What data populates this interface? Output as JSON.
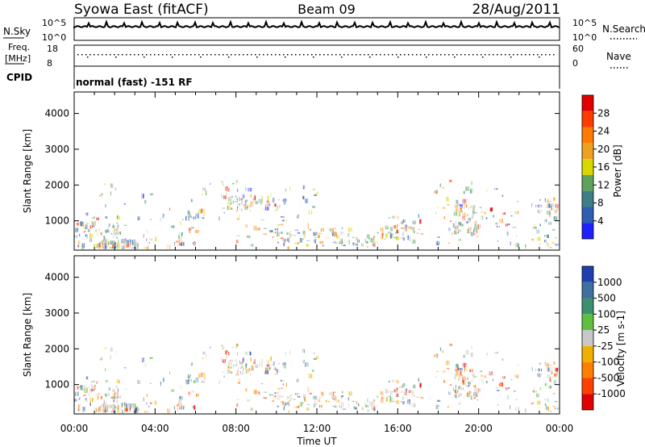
{
  "header": {
    "title": "Syowa East (fitACF)",
    "beam": "Beam 09",
    "date": "28/Aug/2011"
  },
  "noise_panel": {
    "left_label": "N.Sky",
    "right_label": "N.Search",
    "ticks_left": [
      "10^5",
      "10^0"
    ],
    "ticks_right": [
      "10^5",
      "10^0"
    ]
  },
  "freq_panel": {
    "left_label_1": "Freq.",
    "left_label_2": "[MHz]",
    "right_label": "Nave",
    "ticks_left": [
      "18",
      "8"
    ],
    "ticks_right": [
      "60",
      "0"
    ]
  },
  "cpid": {
    "label": "CPID",
    "value": "normal (fast) -151 RF"
  },
  "chart_data": [
    {
      "type": "heatmap",
      "name": "Power",
      "xlabel": "",
      "ylabel": "Slant Range [km]",
      "yticks": [
        "1000",
        "2000",
        "3000",
        "4000"
      ],
      "ylim": [
        180,
        4600
      ],
      "colorbar": {
        "label": "Power [dB]",
        "ticks": [
          "4",
          "8",
          "12",
          "16",
          "20",
          "24",
          "28"
        ],
        "colors": [
          "#1f1fff",
          "#2e5fb0",
          "#3e7f86",
          "#5fa25c",
          "#d8d800",
          "#f0a020",
          "#ff7a00",
          "#ff3b00",
          "#e00000"
        ]
      }
    },
    {
      "type": "heatmap",
      "name": "Velocity",
      "xlabel": "Time UT",
      "ylabel": "Slant Range [km]",
      "yticks": [
        "1000",
        "2000",
        "3000",
        "4000"
      ],
      "ylim": [
        180,
        4600
      ],
      "xticks": [
        "00:00",
        "04:00",
        "08:00",
        "12:00",
        "16:00",
        "20:00",
        "00:00"
      ],
      "colorbar": {
        "label": "Velocity [m s-1]",
        "ticks": [
          "1000",
          "500",
          "100",
          "25",
          "-25",
          "-100",
          "-500",
          "-1000"
        ],
        "colors": [
          "#1f3fb0",
          "#3e70a0",
          "#3e8f70",
          "#5fc040",
          "#c8c8c8",
          "#f0b000",
          "#ff8000",
          "#ff4000",
          "#e00000"
        ]
      }
    }
  ]
}
